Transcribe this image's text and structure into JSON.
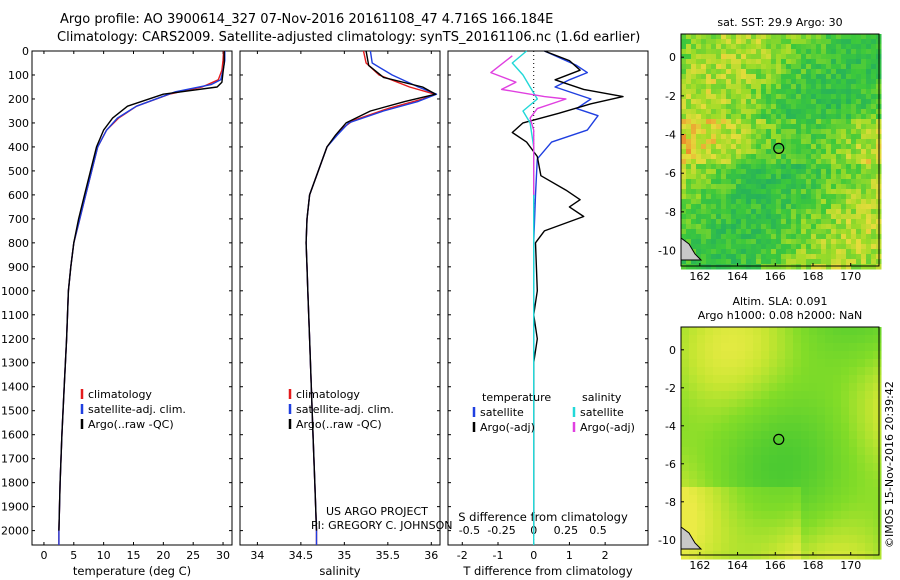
{
  "header": {
    "line1": "Argo profile: AO 3900614_327 07-Nov-2016 20161108_47 4.716S 166.184E",
    "line2": "Climatology: CARS2009. Satellite-adjusted climatology: synTS_20161106.nc (1.6d earlier)"
  },
  "colors": {
    "climatology": "#e41a1c",
    "satellite": "#1f3fe0",
    "argo": "#000000",
    "sal_satellite": "#22d8d8",
    "sal_argo": "#e040e0"
  },
  "depth_ticks": [
    0,
    100,
    200,
    300,
    400,
    500,
    600,
    700,
    800,
    900,
    1000,
    1100,
    1200,
    1300,
    1400,
    1500,
    1600,
    1700,
    1800,
    1900,
    2000
  ],
  "chart_data": [
    {
      "type": "line",
      "name": "temperature",
      "xlabel": "temperature (deg C)",
      "xlim": [
        -2,
        31.5
      ],
      "ylim": [
        0,
        2060
      ],
      "xticks": [
        0,
        5,
        10,
        15,
        20,
        25,
        30
      ],
      "legend": [
        "climatology",
        "satellite-adj. clim.",
        "Argo(..raw -QC)"
      ],
      "legend_placement": "lower-center",
      "series": [
        {
          "name": "climatology",
          "color": "#e41a1c",
          "points": [
            [
              30.1,
              0
            ],
            [
              30.0,
              40
            ],
            [
              29.8,
              80
            ],
            [
              29.2,
              120
            ],
            [
              26.5,
              150
            ],
            [
              21.0,
              180
            ],
            [
              15.5,
              230
            ],
            [
              12.5,
              280
            ],
            [
              10.5,
              330
            ],
            [
              9.0,
              400
            ],
            [
              8.0,
              500
            ],
            [
              7.0,
              600
            ],
            [
              6.0,
              700
            ],
            [
              5.0,
              800
            ],
            [
              4.5,
              900
            ],
            [
              4.1,
              1000
            ],
            [
              3.8,
              1200
            ],
            [
              3.4,
              1400
            ],
            [
              3.0,
              1600
            ],
            [
              2.7,
              1800
            ],
            [
              2.5,
              2000
            ],
            [
              2.5,
              2060
            ]
          ]
        },
        {
          "name": "satellite-adj. clim.",
          "color": "#1f3fe0",
          "points": [
            [
              30.3,
              0
            ],
            [
              30.3,
              40
            ],
            [
              30.0,
              80
            ],
            [
              29.6,
              120
            ],
            [
              28.0,
              140
            ],
            [
              22.0,
              170
            ],
            [
              15.5,
              230
            ],
            [
              12.3,
              280
            ],
            [
              10.5,
              330
            ],
            [
              9.0,
              400
            ],
            [
              8.0,
              500
            ],
            [
              7.0,
              600
            ],
            [
              6.0,
              700
            ],
            [
              5.0,
              800
            ],
            [
              4.5,
              900
            ],
            [
              4.1,
              1000
            ],
            [
              3.8,
              1200
            ],
            [
              3.4,
              1400
            ],
            [
              3.0,
              1600
            ],
            [
              2.7,
              1800
            ],
            [
              2.5,
              2000
            ],
            [
              2.5,
              2060
            ]
          ]
        },
        {
          "name": "Argo(..raw -QC)",
          "color": "#000000",
          "points": [
            [
              30.2,
              0
            ],
            [
              30.2,
              50
            ],
            [
              30.0,
              90
            ],
            [
              29.8,
              130
            ],
            [
              29.0,
              150
            ],
            [
              20.0,
              180
            ],
            [
              14.0,
              230
            ],
            [
              11.5,
              280
            ],
            [
              10.0,
              330
            ],
            [
              8.8,
              400
            ],
            [
              7.8,
              500
            ],
            [
              6.8,
              600
            ],
            [
              5.8,
              700
            ],
            [
              5.0,
              800
            ],
            [
              4.5,
              900
            ],
            [
              4.1,
              1000
            ],
            [
              3.8,
              1200
            ],
            [
              3.4,
              1400
            ],
            [
              3.0,
              1600
            ],
            [
              2.7,
              1800
            ],
            [
              2.5,
              2000
            ]
          ]
        }
      ]
    },
    {
      "type": "line",
      "name": "salinity",
      "xlabel": "salinity",
      "xlim": [
        33.8,
        36.1
      ],
      "ylim": [
        0,
        2060
      ],
      "xticks": [
        34,
        34.5,
        35,
        35.5,
        36
      ],
      "legend": [
        "climatology",
        "satellite-adj. clim.",
        "Argo(..raw -QC)"
      ],
      "legend_placement": "lower-center",
      "annotation": [
        "US ARGO PROJECT",
        "PI: GREGORY C. JOHNSON"
      ],
      "series": [
        {
          "name": "climatology",
          "color": "#e41a1c",
          "points": [
            [
              35.22,
              0
            ],
            [
              35.25,
              50
            ],
            [
              35.4,
              100
            ],
            [
              35.75,
              150
            ],
            [
              36.04,
              180
            ],
            [
              35.9,
              200
            ],
            [
              35.5,
              240
            ],
            [
              35.1,
              290
            ],
            [
              34.95,
              330
            ],
            [
              34.8,
              400
            ],
            [
              34.7,
              500
            ],
            [
              34.6,
              600
            ],
            [
              34.57,
              700
            ],
            [
              34.56,
              800
            ],
            [
              34.57,
              900
            ],
            [
              34.58,
              1000
            ],
            [
              34.6,
              1200
            ],
            [
              34.62,
              1400
            ],
            [
              34.64,
              1600
            ],
            [
              34.66,
              1800
            ],
            [
              34.68,
              2000
            ],
            [
              34.68,
              2060
            ]
          ]
        },
        {
          "name": "satellite-adj. clim.",
          "color": "#1f3fe0",
          "points": [
            [
              35.3,
              0
            ],
            [
              35.32,
              50
            ],
            [
              35.55,
              100
            ],
            [
              35.85,
              150
            ],
            [
              36.06,
              180
            ],
            [
              35.85,
              210
            ],
            [
              35.45,
              250
            ],
            [
              35.05,
              300
            ],
            [
              34.92,
              350
            ],
            [
              34.8,
              400
            ],
            [
              34.7,
              500
            ],
            [
              34.6,
              600
            ],
            [
              34.57,
              700
            ],
            [
              34.56,
              800
            ],
            [
              34.57,
              900
            ],
            [
              34.58,
              1000
            ],
            [
              34.6,
              1200
            ],
            [
              34.62,
              1400
            ],
            [
              34.64,
              1600
            ],
            [
              34.66,
              1800
            ],
            [
              34.68,
              2000
            ],
            [
              34.68,
              2060
            ]
          ]
        },
        {
          "name": "Argo(..raw -QC)",
          "color": "#000000",
          "points": [
            [
              35.25,
              0
            ],
            [
              35.28,
              60
            ],
            [
              35.45,
              110
            ],
            [
              35.9,
              150
            ],
            [
              36.05,
              180
            ],
            [
              35.7,
              210
            ],
            [
              35.3,
              250
            ],
            [
              35.02,
              300
            ],
            [
              34.9,
              350
            ],
            [
              34.8,
              400
            ],
            [
              34.7,
              500
            ],
            [
              34.6,
              600
            ],
            [
              34.57,
              700
            ],
            [
              34.56,
              800
            ],
            [
              34.57,
              900
            ],
            [
              34.58,
              1000
            ],
            [
              34.6,
              1200
            ],
            [
              34.62,
              1400
            ],
            [
              34.64,
              1600
            ],
            [
              34.66,
              1800
            ],
            [
              34.68,
              2000
            ]
          ]
        }
      ]
    },
    {
      "type": "line",
      "name": "difference",
      "xlabel": "T difference from climatology",
      "xlabel_top": "S difference from climatology",
      "xlim": [
        -2.4,
        3.2
      ],
      "ylim": [
        0,
        2060
      ],
      "xticks": [
        -2,
        -1,
        0,
        1,
        2
      ],
      "xticks_top": [
        "-0.5",
        "-0.25",
        "0",
        "0.25",
        "0.5"
      ],
      "legend_temperature": [
        "temperature",
        "satellite",
        "Argo(-adj)"
      ],
      "legend_salinity": [
        "salinity",
        "satellite",
        "Argo(-adj)"
      ],
      "series": [
        {
          "name": "satellite",
          "color": "#1f3fe0",
          "points": [
            [
              0.3,
              0
            ],
            [
              1.2,
              60
            ],
            [
              1.5,
              90
            ],
            [
              1.0,
              120
            ],
            [
              0.6,
              150
            ],
            [
              1.6,
              200
            ],
            [
              1.2,
              240
            ],
            [
              1.8,
              270
            ],
            [
              1.5,
              330
            ],
            [
              0.5,
              380
            ],
            [
              0.1,
              450
            ],
            [
              0.05,
              600
            ],
            [
              0.0,
              800
            ],
            [
              0.0,
              2000
            ]
          ]
        },
        {
          "name": "Argo(-adj)",
          "color": "#000000",
          "points": [
            [
              0.3,
              0
            ],
            [
              1.0,
              40
            ],
            [
              1.3,
              80
            ],
            [
              0.6,
              120
            ],
            [
              1.4,
              160
            ],
            [
              2.5,
              190
            ],
            [
              1.6,
              220
            ],
            [
              0.7,
              260
            ],
            [
              -0.3,
              300
            ],
            [
              -0.6,
              340
            ],
            [
              -0.2,
              380
            ],
            [
              0.1,
              440
            ],
            [
              0.2,
              520
            ],
            [
              0.9,
              580
            ],
            [
              1.3,
              620
            ],
            [
              1.0,
              650
            ],
            [
              1.4,
              690
            ],
            [
              0.3,
              750
            ],
            [
              0.05,
              800
            ],
            [
              0.1,
              1000
            ],
            [
              0.0,
              1100
            ],
            [
              0.1,
              1200
            ],
            [
              0.0,
              1300
            ],
            [
              0.0,
              1600
            ],
            [
              0.0,
              2000
            ]
          ]
        },
        {
          "name": "satellite",
          "color": "#22d8d8",
          "points": [
            [
              -0.2,
              0
            ],
            [
              -0.6,
              50
            ],
            [
              -0.3,
              100
            ],
            [
              -0.1,
              150
            ],
            [
              0.1,
              200
            ],
            [
              -0.3,
              250
            ],
            [
              -0.1,
              300
            ],
            [
              0.0,
              400
            ],
            [
              0.0,
              600
            ],
            [
              0.0,
              1000
            ],
            [
              0.0,
              1500
            ],
            [
              0.0,
              2060
            ]
          ]
        },
        {
          "name": "Argo(-adj)",
          "color": "#e040e0",
          "points": [
            [
              -0.6,
              20
            ],
            [
              -1.2,
              90
            ],
            [
              -0.5,
              130
            ],
            [
              -0.9,
              160
            ],
            [
              0.3,
              190
            ],
            [
              0.9,
              200
            ],
            [
              0.1,
              240
            ],
            [
              -0.1,
              280
            ],
            [
              0.0,
              330
            ],
            [
              0.0,
              400
            ],
            [
              0.0,
              600
            ]
          ]
        }
      ]
    },
    {
      "type": "heatmap",
      "name": "sat. SST map",
      "title": "sat. SST: 29.9  Argo: 30",
      "xticks": [
        162,
        164,
        166,
        168,
        170
      ],
      "yticks": [
        0,
        -2,
        -4,
        -6,
        -8,
        -10
      ],
      "xlim": [
        161,
        171.5
      ],
      "ylim": [
        -10.8,
        1.2
      ],
      "argo_position": [
        166.184,
        -4.716
      ]
    },
    {
      "type": "heatmap",
      "name": "altimetry map",
      "title": "Altim. SLA: 0.091",
      "subtitle": "Argo h1000: 0.08  h2000: NaN",
      "xticks": [
        162,
        164,
        166,
        168,
        170
      ],
      "yticks": [
        0,
        -2,
        -4,
        -6,
        -8,
        -10
      ],
      "xlim": [
        161,
        171.5
      ],
      "ylim": [
        -10.8,
        1.2
      ],
      "argo_position": [
        166.184,
        -4.716
      ]
    }
  ],
  "footer": {
    "credit": "©IMOS 15-Nov-2016 20:39:42"
  }
}
